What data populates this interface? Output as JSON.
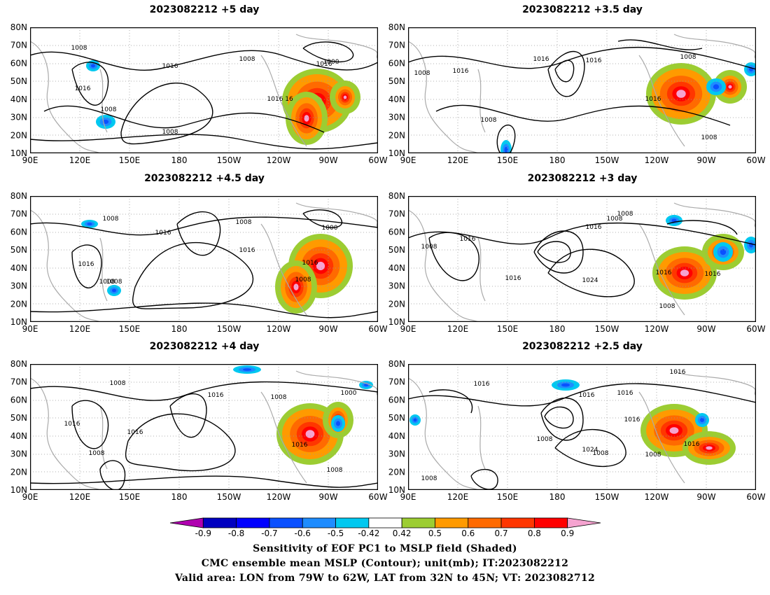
{
  "panels": [
    {
      "title": "2023082212 +5 day",
      "contours": [
        "1008",
        "1016",
        "1008",
        "1016",
        "1016",
        "1008",
        "1008",
        "1000",
        "1016",
        "16"
      ]
    },
    {
      "title": "2023082212 +3.5 day",
      "contours": [
        "1008",
        "1016",
        "1016",
        "1016",
        "1008",
        "1016",
        "1008",
        "1008"
      ]
    },
    {
      "title": "2023082212 +4.5 day",
      "contours": [
        "1008",
        "1016",
        "1008",
        "1016",
        "1008",
        "1000",
        "1016",
        "1008",
        "1016",
        "1008"
      ]
    },
    {
      "title": "2023082212 +3 day",
      "contours": [
        "1008",
        "1016",
        "1008",
        "1016",
        "1016",
        "1024",
        "1008",
        "1016",
        "1016",
        "1008"
      ]
    },
    {
      "title": "2023082212 +4 day",
      "contours": [
        "1008",
        "1016",
        "1016",
        "1008",
        "1016",
        "1008",
        "1000",
        "1016",
        "1008"
      ]
    },
    {
      "title": "2023082212 +2.5 day",
      "contours": [
        "1016",
        "1016",
        "1016",
        "1008",
        "1008",
        "1016",
        "1024",
        "1016",
        "1016",
        "1008",
        "1008"
      ]
    }
  ],
  "lat_labels": [
    "80N",
    "70N",
    "60N",
    "50N",
    "40N",
    "30N",
    "20N",
    "10N"
  ],
  "lon_labels": [
    "90E",
    "120E",
    "150E",
    "180",
    "150W",
    "120W",
    "90W",
    "60W"
  ],
  "colorbar": {
    "labels": [
      "-0.9",
      "-0.8",
      "-0.7",
      "-0.6",
      "-0.5",
      "-0.42",
      "0.42",
      "0.5",
      "0.6",
      "0.7",
      "0.8",
      "0.9"
    ],
    "colors": [
      "#b000b0",
      "#0000c0",
      "#0000ff",
      "#0a50ff",
      "#1e8cff",
      "#00c8f0",
      "#ffffff",
      "#9ccd32",
      "#ff9a00",
      "#ff6a00",
      "#ff3600",
      "#ff0000",
      "#f5a3d0"
    ]
  },
  "caption": {
    "line1": "Sensitivity of EOF PC1 to MSLP field (Shaded)",
    "line2": "CMC ensemble mean MSLP (Contour); unit(mb); IT:2023082212",
    "line3": "Valid area: LON from 79W to 62W, LAT from 32N to 45N; VT: 2023082712"
  }
}
